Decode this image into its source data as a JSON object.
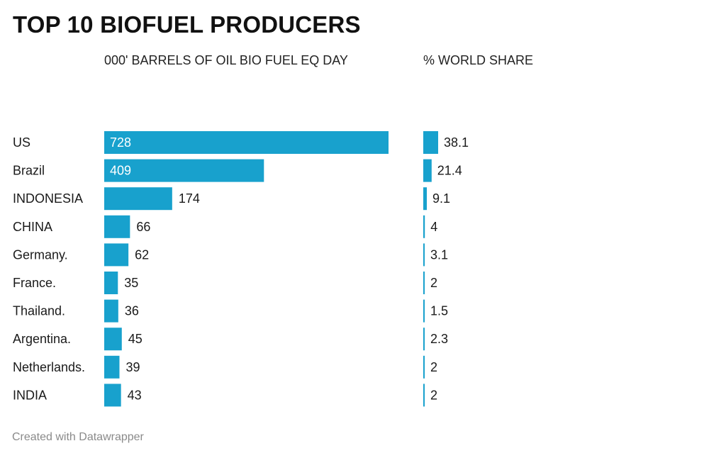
{
  "title": "TOP 10 BIOFUEL PRODUCERS",
  "footer": "Created with Datawrapper",
  "colors": {
    "bar": "#18a1cd",
    "text": "#1a1a1a",
    "label_inside": "#ffffff",
    "footer": "#8a8a8a"
  },
  "chart_data": {
    "type": "bar",
    "orientation": "horizontal",
    "title": "TOP 10 BIOFUEL PRODUCERS",
    "categories": [
      "US",
      "Brazil",
      "INDONESIA",
      "CHINA",
      "Germany.",
      "France.",
      "Thailand.",
      "Argentina.",
      "Netherlands.",
      "INDIA"
    ],
    "series": [
      {
        "name": "000' BARRELS OF OIL BIO FUEL EQ DAY",
        "values": [
          728,
          409,
          174,
          66,
          62,
          35,
          36,
          45,
          39,
          43
        ]
      },
      {
        "name": "% WORLD SHARE",
        "values": [
          38.1,
          21.4,
          9.1,
          4,
          3.1,
          2,
          1.5,
          2.3,
          2,
          2
        ]
      }
    ],
    "grid": false,
    "legend": "none"
  }
}
